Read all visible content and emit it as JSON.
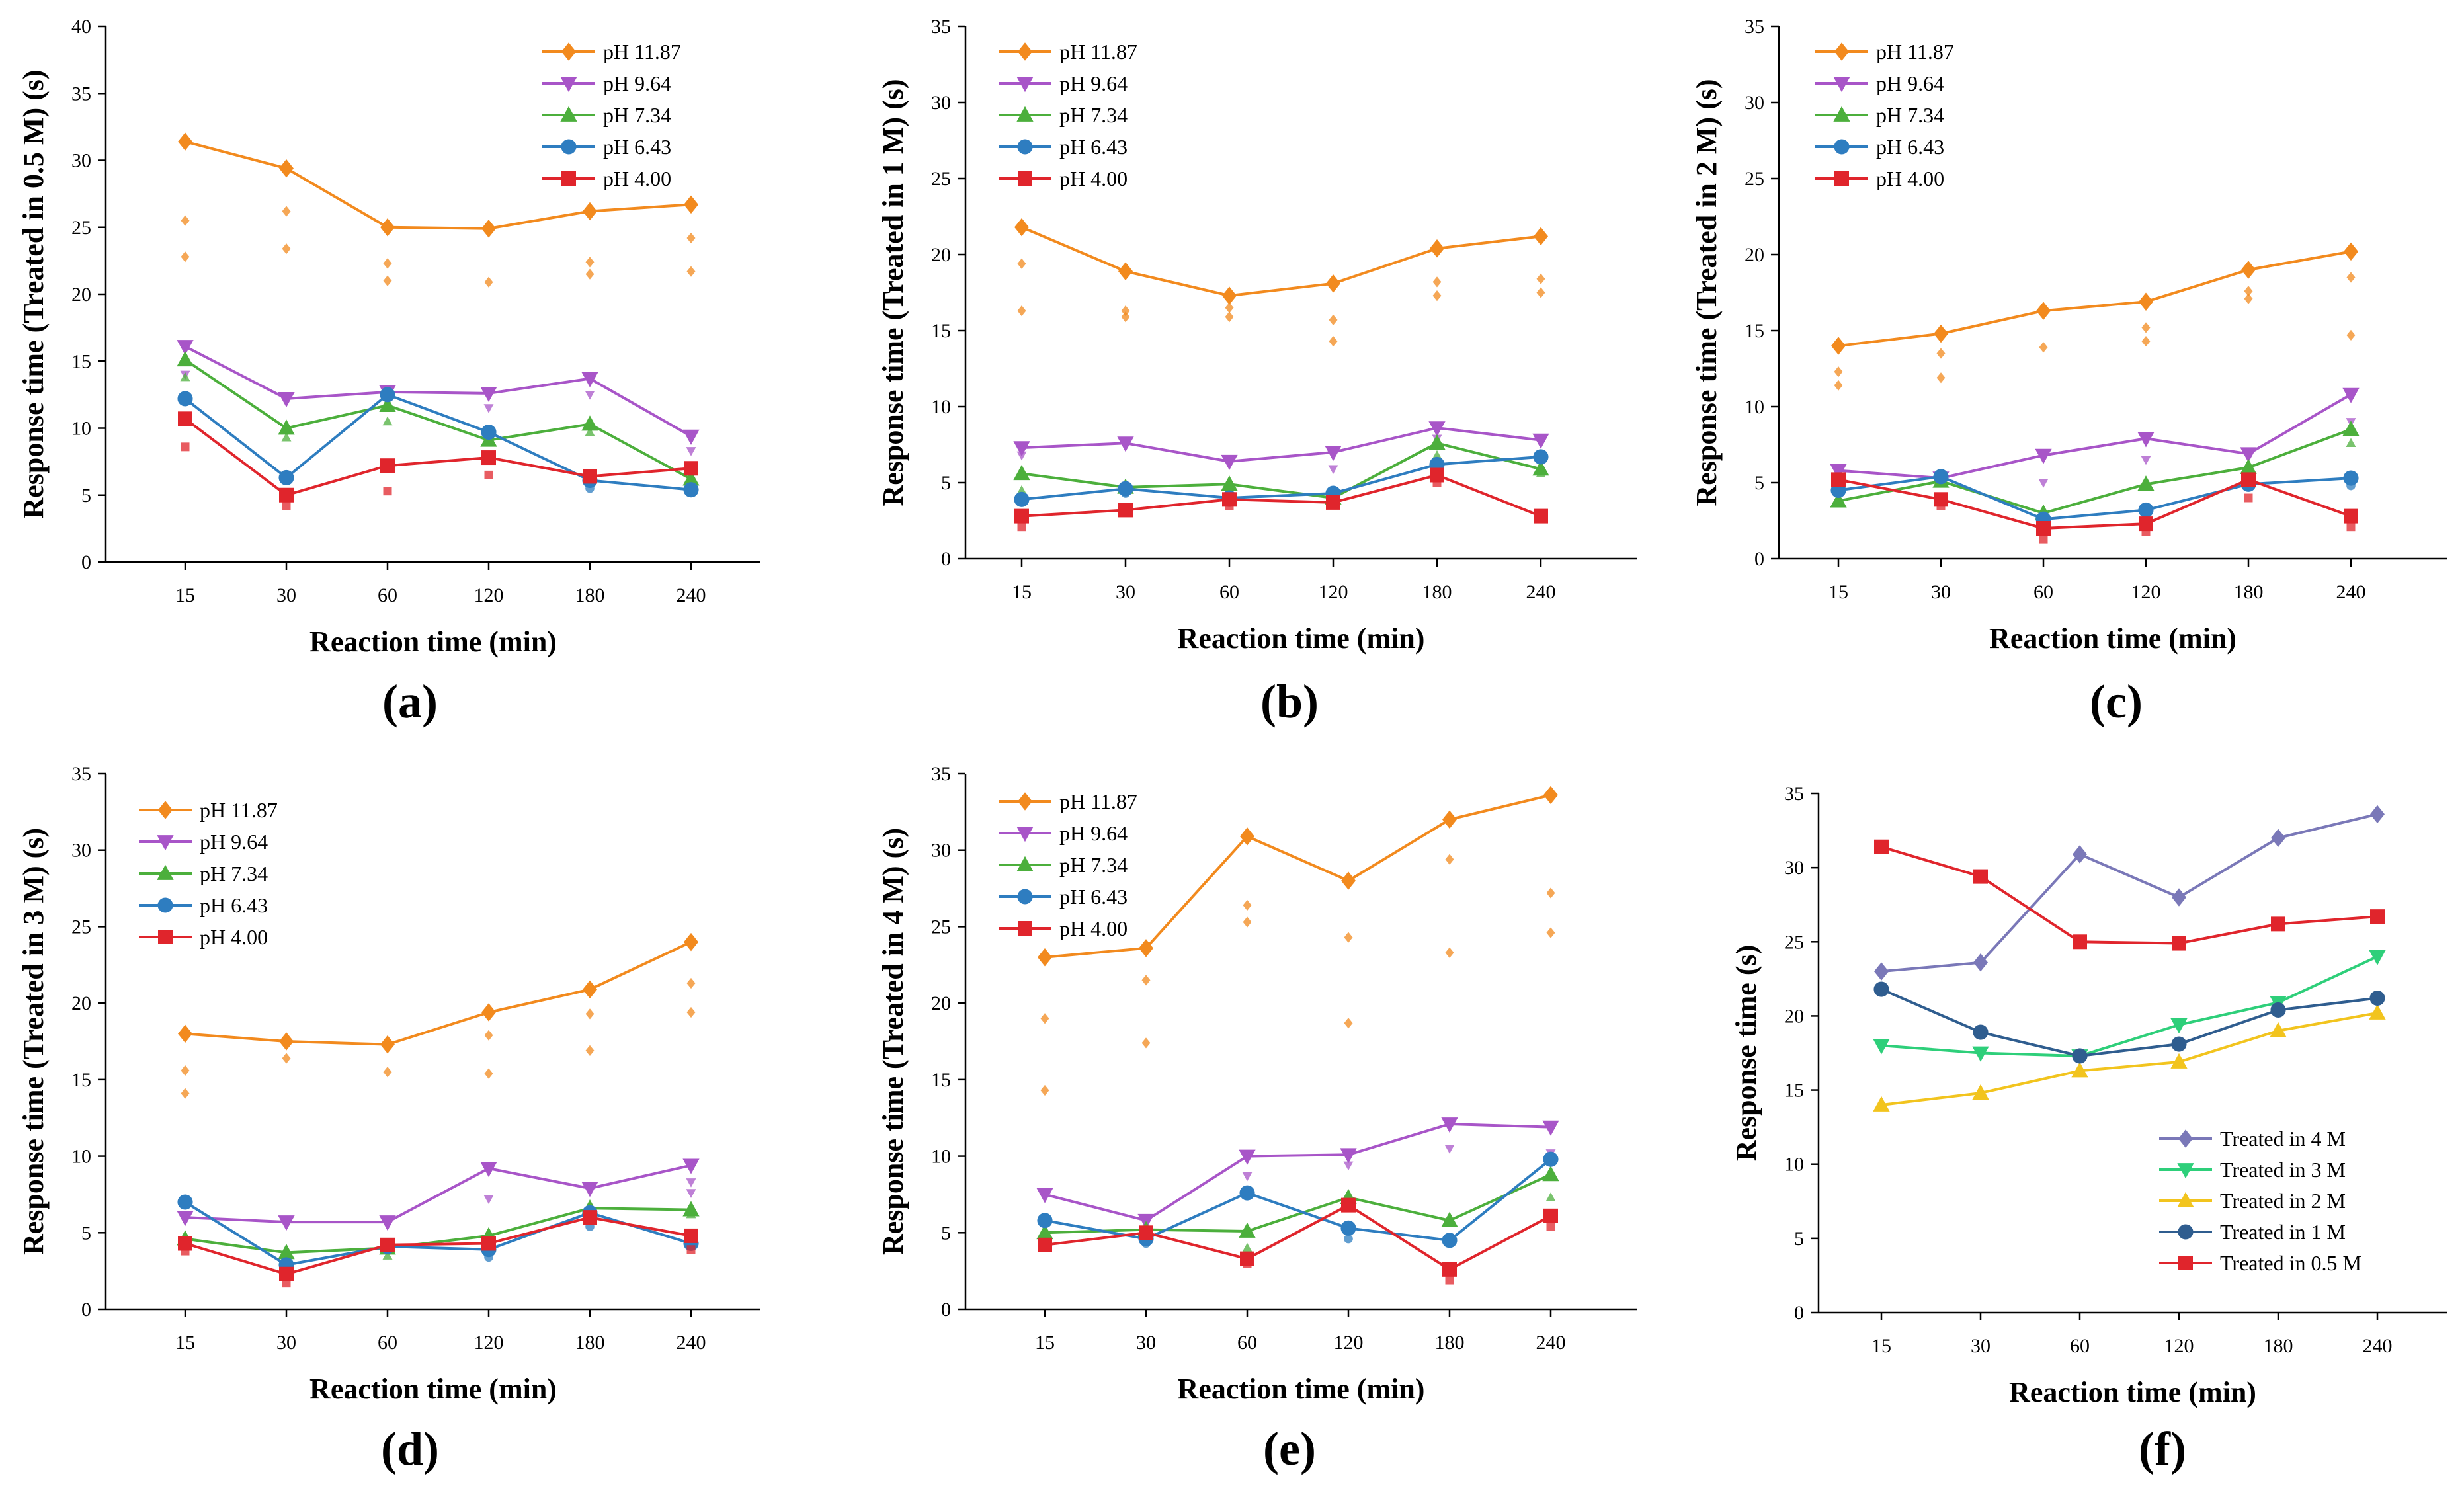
{
  "figure": {
    "panel_labels": [
      "(a)",
      "(b)",
      "(c)",
      "(d)",
      "(e)",
      "(f)"
    ]
  },
  "colors": {
    "pH 11.87": "#f28a1e",
    "pH 9.64": "#a855c8",
    "pH 7.34": "#4caf3c",
    "pH 6.43": "#2e7dc0",
    "pH 4.00": "#e0252c",
    "Treated in 4 M": "#7a78b8",
    "Treated in 3 M": "#2ecf7a",
    "Treated in 2 M": "#f2c41e",
    "Treated in 1 M": "#2f5d8f",
    "Treated in 0.5 M": "#e0252c"
  },
  "chart_data": [
    {
      "panel": "(a)",
      "type": "line",
      "title": "",
      "xlabel": "Reaction time (min)",
      "ylabel": "Response time (Treated in 0.5 M) (s)",
      "categories": [
        "15",
        "30",
        "60",
        "120",
        "180",
        "240"
      ],
      "ylim": [
        0,
        40
      ],
      "yticks": [
        0,
        5,
        10,
        15,
        20,
        25,
        30,
        35,
        40
      ],
      "legend_position": "top-right",
      "series": [
        {
          "name": "pH 11.87",
          "marker": "diamond",
          "values": [
            31.4,
            29.4,
            25.0,
            24.9,
            26.2,
            26.7
          ],
          "scatter": [
            [
              0,
              25.5
            ],
            [
              0,
              22.8
            ],
            [
              1,
              26.2
            ],
            [
              1,
              23.4
            ],
            [
              2,
              22.3
            ],
            [
              2,
              21.0
            ],
            [
              3,
              20.9
            ],
            [
              4,
              22.4
            ],
            [
              4,
              21.5
            ],
            [
              5,
              24.2
            ],
            [
              5,
              21.7
            ]
          ]
        },
        {
          "name": "pH 9.64",
          "marker": "triangle-down",
          "values": [
            16.1,
            12.2,
            12.7,
            12.6,
            13.7,
            9.4
          ],
          "scatter": [
            [
              0,
              14.0
            ],
            [
              3,
              11.5
            ],
            [
              4,
              12.5
            ],
            [
              5,
              8.3
            ]
          ]
        },
        {
          "name": "pH 7.34",
          "marker": "triangle-up",
          "values": [
            15.1,
            10.0,
            11.7,
            9.1,
            10.3,
            6.2
          ],
          "scatter": [
            [
              0,
              13.8
            ],
            [
              1,
              9.3
            ],
            [
              2,
              10.5
            ],
            [
              4,
              9.7
            ]
          ]
        },
        {
          "name": "pH 6.43",
          "marker": "circle",
          "values": [
            12.2,
            6.3,
            12.5,
            9.7,
            6.1,
            5.4
          ],
          "scatter": [
            [
              4,
              5.5
            ]
          ]
        },
        {
          "name": "pH 4.00",
          "marker": "square",
          "values": [
            10.7,
            5.0,
            7.2,
            7.8,
            6.4,
            7.0
          ],
          "scatter": [
            [
              0,
              8.6
            ],
            [
              1,
              4.2
            ],
            [
              2,
              5.3
            ],
            [
              3,
              6.5
            ]
          ]
        }
      ]
    },
    {
      "panel": "(b)",
      "type": "line",
      "title": "",
      "xlabel": "Reaction time (min)",
      "ylabel": "Response time (Treated in 1 M) (s)",
      "categories": [
        "15",
        "30",
        "60",
        "120",
        "180",
        "240"
      ],
      "ylim": [
        0,
        35
      ],
      "yticks": [
        0,
        5,
        10,
        15,
        20,
        25,
        30,
        35
      ],
      "legend_position": "top-left",
      "series": [
        {
          "name": "pH 11.87",
          "marker": "diamond",
          "values": [
            21.8,
            18.9,
            17.3,
            18.1,
            20.4,
            21.2
          ],
          "scatter": [
            [
              0,
              19.4
            ],
            [
              0,
              16.3
            ],
            [
              1,
              16.3
            ],
            [
              1,
              15.9
            ],
            [
              2,
              16.5
            ],
            [
              2,
              15.9
            ],
            [
              3,
              15.7
            ],
            [
              3,
              14.3
            ],
            [
              4,
              18.2
            ],
            [
              4,
              17.3
            ],
            [
              5,
              18.4
            ],
            [
              5,
              17.5
            ]
          ]
        },
        {
          "name": "pH 9.64",
          "marker": "triangle-down",
          "values": [
            7.3,
            7.6,
            6.4,
            7.0,
            8.6,
            7.8
          ],
          "scatter": [
            [
              0,
              6.8
            ],
            [
              3,
              5.9
            ],
            [
              4,
              7.9
            ]
          ]
        },
        {
          "name": "pH 7.34",
          "marker": "triangle-up",
          "values": [
            5.6,
            4.7,
            4.9,
            4.0,
            7.6,
            5.9
          ],
          "scatter": [
            [
              0,
              4.5
            ],
            [
              2,
              4.2
            ],
            [
              4,
              6.8
            ],
            [
              5,
              5.6
            ]
          ]
        },
        {
          "name": "pH 6.43",
          "marker": "circle",
          "values": [
            3.9,
            4.6,
            4.0,
            4.3,
            6.2,
            6.7
          ],
          "scatter": [
            [
              1,
              4.3
            ],
            [
              2,
              3.7
            ]
          ]
        },
        {
          "name": "pH 4.00",
          "marker": "square",
          "values": [
            2.8,
            3.2,
            3.9,
            3.7,
            5.5,
            2.8
          ],
          "scatter": [
            [
              0,
              2.1
            ],
            [
              2,
              3.5
            ],
            [
              4,
              5.0
            ]
          ]
        }
      ]
    },
    {
      "panel": "(c)",
      "type": "line",
      "title": "",
      "xlabel": "Reaction time (min)",
      "ylabel": "Response time (Treated in 2 M) (s)",
      "categories": [
        "15",
        "30",
        "60",
        "120",
        "180",
        "240"
      ],
      "ylim": [
        0,
        35
      ],
      "yticks": [
        0,
        5,
        10,
        15,
        20,
        25,
        30,
        35
      ],
      "legend_position": "top-left",
      "series": [
        {
          "name": "pH 11.87",
          "marker": "diamond",
          "values": [
            14.0,
            14.8,
            16.3,
            16.9,
            19.0,
            20.2
          ],
          "scatter": [
            [
              0,
              12.3
            ],
            [
              0,
              11.4
            ],
            [
              1,
              13.5
            ],
            [
              1,
              11.9
            ],
            [
              2,
              13.9
            ],
            [
              3,
              15.2
            ],
            [
              3,
              14.3
            ],
            [
              4,
              17.6
            ],
            [
              4,
              17.1
            ],
            [
              5,
              18.5
            ],
            [
              5,
              14.7
            ]
          ]
        },
        {
          "name": "pH 9.64",
          "marker": "triangle-down",
          "values": [
            5.8,
            5.3,
            6.8,
            7.9,
            6.9,
            10.8
          ],
          "scatter": [
            [
              1,
              5.0
            ],
            [
              2,
              5.0
            ],
            [
              3,
              6.5
            ],
            [
              5,
              9.0
            ]
          ]
        },
        {
          "name": "pH 7.34",
          "marker": "triangle-up",
          "values": [
            3.8,
            5.1,
            3.0,
            4.9,
            6.0,
            8.5
          ],
          "scatter": [
            [
              0,
              4.0
            ],
            [
              2,
              2.6
            ],
            [
              5,
              7.6
            ]
          ]
        },
        {
          "name": "pH 6.43",
          "marker": "circle",
          "values": [
            4.5,
            5.4,
            2.6,
            3.2,
            4.9,
            5.3
          ],
          "scatter": [
            [
              5,
              4.8
            ]
          ]
        },
        {
          "name": "pH 4.00",
          "marker": "square",
          "values": [
            5.2,
            3.9,
            2.0,
            2.3,
            5.2,
            2.8
          ],
          "scatter": [
            [
              1,
              3.5
            ],
            [
              2,
              1.3
            ],
            [
              3,
              1.8
            ],
            [
              4,
              4.0
            ],
            [
              5,
              2.1
            ]
          ]
        }
      ]
    },
    {
      "panel": "(d)",
      "type": "line",
      "title": "",
      "xlabel": "Reaction time (min)",
      "ylabel": "Response time (Treated in 3 M) (s)",
      "categories": [
        "15",
        "30",
        "60",
        "120",
        "180",
        "240"
      ],
      "ylim": [
        0,
        35
      ],
      "yticks": [
        0,
        5,
        10,
        15,
        20,
        25,
        30,
        35
      ],
      "legend_position": "top-left",
      "series": [
        {
          "name": "pH 11.87",
          "marker": "diamond",
          "values": [
            18.0,
            17.5,
            17.3,
            19.4,
            20.9,
            24.0
          ],
          "scatter": [
            [
              0,
              15.6
            ],
            [
              0,
              14.1
            ],
            [
              1,
              16.4
            ],
            [
              2,
              15.5
            ],
            [
              3,
              17.9
            ],
            [
              3,
              15.4
            ],
            [
              4,
              19.3
            ],
            [
              4,
              16.9
            ],
            [
              5,
              21.3
            ],
            [
              5,
              19.4
            ]
          ]
        },
        {
          "name": "pH 9.64",
          "marker": "triangle-down",
          "values": [
            6.0,
            5.7,
            5.7,
            9.2,
            7.9,
            9.4
          ],
          "scatter": [
            [
              3,
              7.2
            ],
            [
              5,
              8.3
            ],
            [
              5,
              7.6
            ]
          ]
        },
        {
          "name": "pH 7.34",
          "marker": "triangle-up",
          "values": [
            4.6,
            3.7,
            4.0,
            4.8,
            6.6,
            6.5
          ],
          "scatter": [
            [
              2,
              3.5
            ],
            [
              5,
              6.2
            ]
          ]
        },
        {
          "name": "pH 6.43",
          "marker": "circle",
          "values": [
            7.0,
            2.9,
            4.1,
            3.9,
            6.3,
            4.3
          ],
          "scatter": [
            [
              3,
              3.4
            ],
            [
              4,
              5.4
            ]
          ]
        },
        {
          "name": "pH 4.00",
          "marker": "square",
          "values": [
            4.3,
            2.3,
            4.2,
            4.3,
            6.0,
            4.8
          ],
          "scatter": [
            [
              0,
              3.8
            ],
            [
              1,
              1.7
            ],
            [
              5,
              3.9
            ]
          ]
        }
      ]
    },
    {
      "panel": "(e)",
      "type": "line",
      "title": "",
      "xlabel": "Reaction time (min)",
      "ylabel": "Response time (Treated in 4 M) (s)",
      "categories": [
        "15",
        "30",
        "60",
        "120",
        "180",
        "240"
      ],
      "ylim": [
        0,
        35
      ],
      "yticks": [
        0,
        5,
        10,
        15,
        20,
        25,
        30,
        35
      ],
      "legend_position": "top-left",
      "series": [
        {
          "name": "pH 11.87",
          "marker": "diamond",
          "values": [
            23.0,
            23.6,
            30.9,
            28.0,
            32.0,
            33.6
          ],
          "scatter": [
            [
              0,
              19.0
            ],
            [
              0,
              14.3
            ],
            [
              1,
              21.5
            ],
            [
              1,
              17.4
            ],
            [
              2,
              26.4
            ],
            [
              2,
              25.3
            ],
            [
              3,
              24.3
            ],
            [
              3,
              18.7
            ],
            [
              4,
              29.4
            ],
            [
              4,
              23.3
            ],
            [
              5,
              27.2
            ],
            [
              5,
              24.6
            ]
          ]
        },
        {
          "name": "pH 9.64",
          "marker": "triangle-down",
          "values": [
            7.5,
            5.8,
            10.0,
            10.1,
            12.1,
            11.9
          ],
          "scatter": [
            [
              2,
              8.7
            ],
            [
              3,
              9.4
            ],
            [
              4,
              10.5
            ],
            [
              5,
              10.2
            ]
          ]
        },
        {
          "name": "pH 7.34",
          "marker": "triangle-up",
          "values": [
            5.0,
            5.2,
            5.1,
            7.3,
            5.8,
            8.8
          ],
          "scatter": [
            [
              2,
              4.0
            ],
            [
              5,
              7.3
            ]
          ]
        },
        {
          "name": "pH 6.43",
          "marker": "circle",
          "values": [
            5.8,
            4.6,
            7.6,
            5.3,
            4.5,
            9.8
          ],
          "scatter": [
            [
              1,
              4.3
            ],
            [
              3,
              4.6
            ]
          ]
        },
        {
          "name": "pH 4.00",
          "marker": "square",
          "values": [
            4.2,
            5.0,
            3.3,
            6.8,
            2.6,
            6.1
          ],
          "scatter": [
            [
              2,
              3.0
            ],
            [
              4,
              1.9
            ],
            [
              5,
              5.4
            ]
          ]
        }
      ]
    },
    {
      "panel": "(f)",
      "type": "line",
      "title": "",
      "xlabel": "Reaction time (min)",
      "ylabel": "Response time (s)",
      "categories": [
        "15",
        "30",
        "60",
        "120",
        "180",
        "240"
      ],
      "ylim": [
        0,
        35
      ],
      "yticks": [
        0,
        5,
        10,
        15,
        20,
        25,
        30,
        35
      ],
      "legend_position": "bottom-right",
      "series": [
        {
          "name": "Treated in 4 M",
          "marker": "diamond",
          "values": [
            23.0,
            23.6,
            30.9,
            28.0,
            32.0,
            33.6
          ],
          "scatter": []
        },
        {
          "name": "Treated in 3 M",
          "marker": "triangle-down",
          "values": [
            18.0,
            17.5,
            17.3,
            19.4,
            20.9,
            24.0
          ],
          "scatter": []
        },
        {
          "name": "Treated in 2 M",
          "marker": "triangle-up",
          "values": [
            14.0,
            14.8,
            16.3,
            16.9,
            19.0,
            20.2
          ],
          "scatter": []
        },
        {
          "name": "Treated in 1 M",
          "marker": "circle",
          "values": [
            21.8,
            18.9,
            17.3,
            18.1,
            20.4,
            21.2
          ],
          "scatter": []
        },
        {
          "name": "Treated in 0.5 M",
          "marker": "square",
          "values": [
            31.4,
            29.4,
            25.0,
            24.9,
            26.2,
            26.7
          ],
          "scatter": []
        }
      ]
    }
  ]
}
